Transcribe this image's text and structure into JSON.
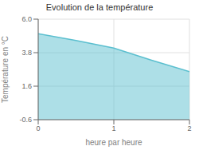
{
  "chart_data": {
    "type": "area",
    "title": "Evolution de la température",
    "xlabel": "heure par heure",
    "ylabel": "Température en °C",
    "x": [
      0,
      0.5,
      1.0,
      1.5,
      2.0
    ],
    "values": [
      5.05,
      4.6,
      4.1,
      3.3,
      2.55
    ],
    "xlim": [
      0,
      2
    ],
    "ylim": [
      -0.6,
      6.0
    ],
    "xticks": [
      0,
      1,
      2
    ],
    "yticks": [
      -0.6,
      1.6,
      3.8,
      {
        "value": 6.0,
        "label": "6.0"
      }
    ],
    "color": "#5bbfcf",
    "grid": true
  }
}
